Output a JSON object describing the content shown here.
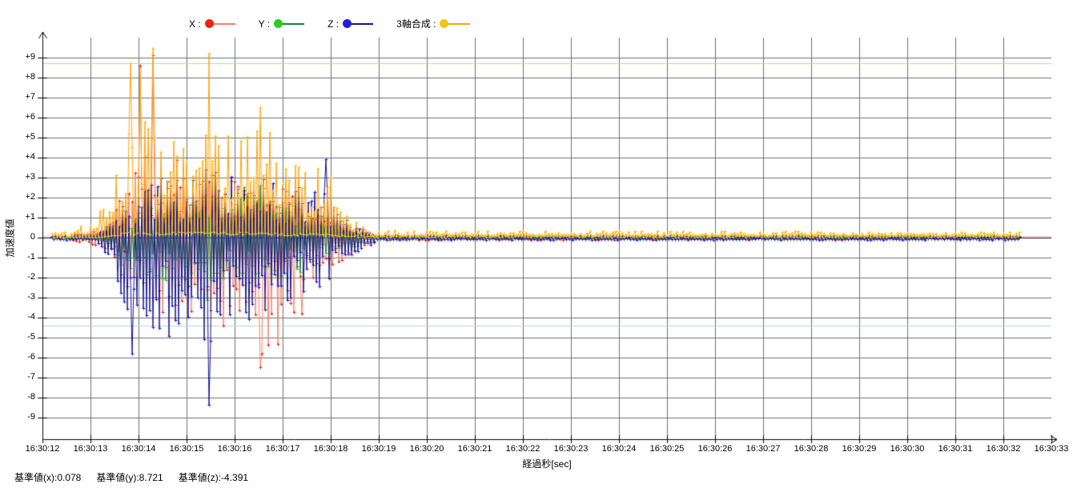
{
  "chart_data": {
    "type": "line",
    "title": "",
    "xlabel": "経過秒[sec]",
    "ylabel": "加速度値",
    "legend_position": "top",
    "grid": true,
    "x_axis": {
      "label": "経過秒[sec]",
      "ticks": [
        "16:30:12",
        "16:30:13",
        "16:30:14",
        "16:30:15",
        "16:30:16",
        "16:30:17",
        "16:30:18",
        "16:30:19",
        "16:30:20",
        "16:30:21",
        "16:30:22",
        "16:30:23",
        "16:30:24",
        "16:30:25",
        "16:30:26",
        "16:30:27",
        "16:30:28",
        "16:30:29",
        "16:30:30",
        "16:30:31",
        "16:30:32",
        "16:30:33"
      ]
    },
    "y_axis": {
      "label": "加速度値",
      "tick_labels": [
        "+9",
        "+8",
        "+7",
        "+6",
        "+5",
        "+4",
        "+3",
        "+2",
        "+1",
        "0",
        "-1",
        "-2",
        "-3",
        "-4",
        "-5",
        "-6",
        "-7",
        "-8",
        "-9"
      ],
      "min": -10,
      "max": 10
    },
    "reference_lines": [
      {
        "name": "基準値(x)",
        "value": 0.078,
        "color": "#ffb9b9"
      },
      {
        "name": "基準値(y)",
        "value": 8.721,
        "color": "#99ef90"
      },
      {
        "name": "基準値(z)",
        "value": -4.391,
        "color": "#aed9e6"
      }
    ],
    "data_time_range": {
      "start_offset_sec": 0.2,
      "end_offset_sec": 20.35,
      "samples_per_sec": 30
    },
    "series": [
      {
        "name": "X",
        "legend_label": "X :",
        "marker_color": "#e8250f",
        "line_color": "#f8806a",
        "positive": false,
        "seed": 11,
        "envelope": [
          [
            0.2,
            -0.08,
            0.08
          ],
          [
            0.62,
            -0.08,
            0.08
          ],
          [
            0.72,
            -0.55,
            0.5
          ],
          [
            0.85,
            -0.18,
            0.18
          ],
          [
            1.1,
            -0.45,
            0.4
          ],
          [
            1.25,
            -0.35,
            0.35
          ],
          [
            1.45,
            -1.1,
            1.0
          ],
          [
            1.65,
            -2.2,
            2.4
          ],
          [
            1.85,
            -3.2,
            3.9
          ],
          [
            2.05,
            -3.0,
            4.2
          ],
          [
            2.3,
            -3.4,
            3.8
          ],
          [
            2.55,
            -4.4,
            3.2
          ],
          [
            2.85,
            -3.2,
            4.6
          ],
          [
            3.15,
            -4.2,
            3.4
          ],
          [
            3.45,
            -3.6,
            3.1
          ],
          [
            3.75,
            -4.4,
            2.7
          ],
          [
            4.05,
            -4.8,
            3.0
          ],
          [
            4.3,
            -5.3,
            2.8
          ],
          [
            4.55,
            -6.2,
            3.2
          ],
          [
            4.75,
            -5.0,
            2.6
          ],
          [
            5.0,
            -3.7,
            2.4
          ],
          [
            5.3,
            -3.8,
            2.1
          ],
          [
            5.6,
            -2.5,
            1.7
          ],
          [
            5.85,
            -2.6,
            1.5
          ],
          [
            6.1,
            -1.5,
            0.9
          ],
          [
            6.4,
            -1.0,
            0.6
          ],
          [
            6.7,
            -0.5,
            0.35
          ],
          [
            7.0,
            -0.12,
            0.12
          ],
          [
            20.35,
            -0.1,
            0.1
          ]
        ],
        "peaks": [
          [
            2.3,
            9.1
          ],
          [
            2.02,
            8.6
          ],
          [
            4.53,
            -6.45
          ],
          [
            4.7,
            -5.35
          ],
          [
            4.9,
            -5.3
          ],
          [
            5.4,
            -3.8
          ]
        ]
      },
      {
        "name": "Y",
        "legend_label": "Y :",
        "marker_color": "#27cf1f",
        "line_color": "#18803f",
        "positive": false,
        "seed": 22,
        "envelope": [
          [
            0.2,
            -0.07,
            0.07
          ],
          [
            1.2,
            -0.1,
            0.1
          ],
          [
            1.4,
            -1.0,
            0.5
          ],
          [
            1.6,
            -1.6,
            0.8
          ],
          [
            1.9,
            -1.8,
            1.2
          ],
          [
            2.2,
            -2.2,
            1.6
          ],
          [
            2.5,
            -2.4,
            1.8
          ],
          [
            2.8,
            -2.0,
            2.2
          ],
          [
            3.1,
            -2.6,
            1.9
          ],
          [
            3.4,
            -3.0,
            2.0
          ],
          [
            3.7,
            -2.4,
            2.2
          ],
          [
            4.0,
            -2.6,
            2.4
          ],
          [
            4.3,
            -2.2,
            2.6
          ],
          [
            4.6,
            -2.4,
            2.2
          ],
          [
            5.0,
            -2.2,
            1.9
          ],
          [
            5.4,
            -1.7,
            1.5
          ],
          [
            5.8,
            -1.2,
            1.0
          ],
          [
            6.2,
            -0.8,
            0.7
          ],
          [
            6.6,
            -0.4,
            0.3
          ],
          [
            7.0,
            -0.09,
            0.09
          ],
          [
            20.35,
            -0.09,
            0.09
          ]
        ],
        "peaks": [
          [
            3.42,
            -3.1
          ],
          [
            4.52,
            2.6
          ]
        ]
      },
      {
        "name": "Z",
        "legend_label": "Z :",
        "marker_color": "#2020d8",
        "line_color": "#14148a",
        "positive": false,
        "seed": 33,
        "envelope": [
          [
            0.2,
            -0.1,
            0.09
          ],
          [
            1.1,
            -0.13,
            0.11
          ],
          [
            1.3,
            -0.8,
            0.5
          ],
          [
            1.5,
            -2.0,
            1.2
          ],
          [
            1.7,
            -3.4,
            1.8
          ],
          [
            1.9,
            -4.8,
            2.2
          ],
          [
            2.1,
            -4.2,
            2.8
          ],
          [
            2.4,
            -4.6,
            3.2
          ],
          [
            2.7,
            -4.2,
            3.4
          ],
          [
            3.0,
            -4.4,
            3.0
          ],
          [
            3.3,
            -5.0,
            3.4
          ],
          [
            3.5,
            -5.8,
            3.6
          ],
          [
            3.7,
            -4.4,
            3.2
          ],
          [
            4.0,
            -3.8,
            3.0
          ],
          [
            4.3,
            -4.2,
            2.9
          ],
          [
            4.6,
            -4.7,
            3.0
          ],
          [
            4.9,
            -3.5,
            2.8
          ],
          [
            5.2,
            -3.0,
            2.6
          ],
          [
            5.5,
            -2.8,
            2.5
          ],
          [
            5.85,
            -2.4,
            3.2
          ],
          [
            6.1,
            -1.6,
            1.4
          ],
          [
            6.4,
            -1.2,
            0.9
          ],
          [
            6.7,
            -0.6,
            0.5
          ],
          [
            7.0,
            -0.11,
            0.09
          ],
          [
            20.35,
            -0.11,
            0.09
          ]
        ],
        "peaks": [
          [
            3.48,
            -8.35
          ],
          [
            1.87,
            -5.8
          ],
          [
            5.9,
            3.9
          ],
          [
            2.62,
            -4.9
          ]
        ]
      },
      {
        "name": "3軸合成",
        "legend_label": "3軸合成 :",
        "marker_color": "#f3c418",
        "line_color": "#ffa30f",
        "positive": true,
        "seed": 44,
        "envelope": [
          [
            0.2,
            0.03,
            0.25
          ],
          [
            0.6,
            0.04,
            0.3
          ],
          [
            0.72,
            0.05,
            0.75
          ],
          [
            0.9,
            0.04,
            0.35
          ],
          [
            1.15,
            0.05,
            1.1
          ],
          [
            1.35,
            0.1,
            2.2
          ],
          [
            1.55,
            0.2,
            3.6
          ],
          [
            1.75,
            0.3,
            5.2
          ],
          [
            1.95,
            0.3,
            7.2
          ],
          [
            2.15,
            0.3,
            6.4
          ],
          [
            2.35,
            0.3,
            6.8
          ],
          [
            2.6,
            0.3,
            5.6
          ],
          [
            2.9,
            0.3,
            5.2
          ],
          [
            3.2,
            0.3,
            5.4
          ],
          [
            3.5,
            0.3,
            6.6
          ],
          [
            3.8,
            0.3,
            5.2
          ],
          [
            4.1,
            0.3,
            5.4
          ],
          [
            4.4,
            0.3,
            6.2
          ],
          [
            4.7,
            0.3,
            5.6
          ],
          [
            5.0,
            0.25,
            4.7
          ],
          [
            5.3,
            0.2,
            4.2
          ],
          [
            5.6,
            0.2,
            3.0
          ],
          [
            5.9,
            0.2,
            4.0
          ],
          [
            6.15,
            0.15,
            1.6
          ],
          [
            6.45,
            0.12,
            1.0
          ],
          [
            6.75,
            0.1,
            0.5
          ],
          [
            7.05,
            0.08,
            0.35
          ],
          [
            20.35,
            0.08,
            0.3
          ]
        ],
        "peaks": [
          [
            2.3,
            9.45
          ],
          [
            3.48,
            9.2
          ],
          [
            1.85,
            8.7
          ],
          [
            2.05,
            8.3
          ],
          [
            4.52,
            6.5
          ]
        ]
      }
    ]
  },
  "footer": {
    "items": [
      "基準値(x):0.078",
      "基準値(y):8.721",
      "基準値(z):-4.391"
    ]
  },
  "colors": {
    "grid": "#6f6f6f",
    "axis": "#000000",
    "background": "#ffffff"
  }
}
